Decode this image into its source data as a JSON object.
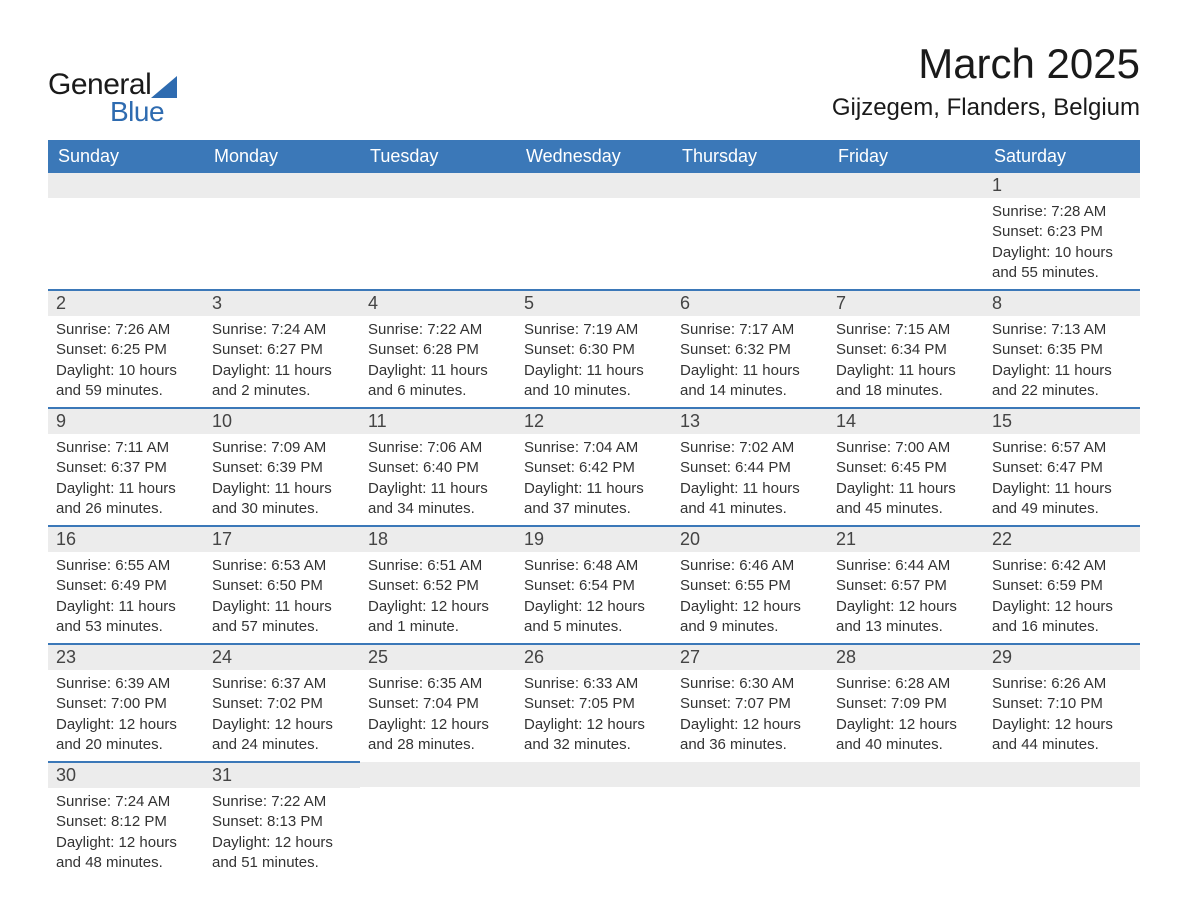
{
  "colors": {
    "brand_blue": "#3b78b8",
    "logo_blue": "#2e6bb0",
    "header_text": "#ffffff",
    "daynum_bg": "#ececec",
    "text": "#333333",
    "page_bg": "#ffffff"
  },
  "typography": {
    "month_title_size_pt": 32,
    "location_size_pt": 18,
    "dayheader_size_pt": 14,
    "daynum_size_pt": 14,
    "body_size_pt": 11
  },
  "logo": {
    "text_general": "General",
    "text_blue": "Blue"
  },
  "title": "March 2025",
  "location": "Gijzegem, Flanders, Belgium",
  "day_headers": [
    "Sunday",
    "Monday",
    "Tuesday",
    "Wednesday",
    "Thursday",
    "Friday",
    "Saturday"
  ],
  "labels": {
    "sunrise": "Sunrise:",
    "sunset": "Sunset:",
    "daylight": "Daylight:"
  },
  "weeks": [
    [
      null,
      null,
      null,
      null,
      null,
      null,
      {
        "n": "1",
        "sunrise": "7:28 AM",
        "sunset": "6:23 PM",
        "daylight": "10 hours and 55 minutes."
      }
    ],
    [
      {
        "n": "2",
        "sunrise": "7:26 AM",
        "sunset": "6:25 PM",
        "daylight": "10 hours and 59 minutes."
      },
      {
        "n": "3",
        "sunrise": "7:24 AM",
        "sunset": "6:27 PM",
        "daylight": "11 hours and 2 minutes."
      },
      {
        "n": "4",
        "sunrise": "7:22 AM",
        "sunset": "6:28 PM",
        "daylight": "11 hours and 6 minutes."
      },
      {
        "n": "5",
        "sunrise": "7:19 AM",
        "sunset": "6:30 PM",
        "daylight": "11 hours and 10 minutes."
      },
      {
        "n": "6",
        "sunrise": "7:17 AM",
        "sunset": "6:32 PM",
        "daylight": "11 hours and 14 minutes."
      },
      {
        "n": "7",
        "sunrise": "7:15 AM",
        "sunset": "6:34 PM",
        "daylight": "11 hours and 18 minutes."
      },
      {
        "n": "8",
        "sunrise": "7:13 AM",
        "sunset": "6:35 PM",
        "daylight": "11 hours and 22 minutes."
      }
    ],
    [
      {
        "n": "9",
        "sunrise": "7:11 AM",
        "sunset": "6:37 PM",
        "daylight": "11 hours and 26 minutes."
      },
      {
        "n": "10",
        "sunrise": "7:09 AM",
        "sunset": "6:39 PM",
        "daylight": "11 hours and 30 minutes."
      },
      {
        "n": "11",
        "sunrise": "7:06 AM",
        "sunset": "6:40 PM",
        "daylight": "11 hours and 34 minutes."
      },
      {
        "n": "12",
        "sunrise": "7:04 AM",
        "sunset": "6:42 PM",
        "daylight": "11 hours and 37 minutes."
      },
      {
        "n": "13",
        "sunrise": "7:02 AM",
        "sunset": "6:44 PM",
        "daylight": "11 hours and 41 minutes."
      },
      {
        "n": "14",
        "sunrise": "7:00 AM",
        "sunset": "6:45 PM",
        "daylight": "11 hours and 45 minutes."
      },
      {
        "n": "15",
        "sunrise": "6:57 AM",
        "sunset": "6:47 PM",
        "daylight": "11 hours and 49 minutes."
      }
    ],
    [
      {
        "n": "16",
        "sunrise": "6:55 AM",
        "sunset": "6:49 PM",
        "daylight": "11 hours and 53 minutes."
      },
      {
        "n": "17",
        "sunrise": "6:53 AM",
        "sunset": "6:50 PM",
        "daylight": "11 hours and 57 minutes."
      },
      {
        "n": "18",
        "sunrise": "6:51 AM",
        "sunset": "6:52 PM",
        "daylight": "12 hours and 1 minute."
      },
      {
        "n": "19",
        "sunrise": "6:48 AM",
        "sunset": "6:54 PM",
        "daylight": "12 hours and 5 minutes."
      },
      {
        "n": "20",
        "sunrise": "6:46 AM",
        "sunset": "6:55 PM",
        "daylight": "12 hours and 9 minutes."
      },
      {
        "n": "21",
        "sunrise": "6:44 AM",
        "sunset": "6:57 PM",
        "daylight": "12 hours and 13 minutes."
      },
      {
        "n": "22",
        "sunrise": "6:42 AM",
        "sunset": "6:59 PM",
        "daylight": "12 hours and 16 minutes."
      }
    ],
    [
      {
        "n": "23",
        "sunrise": "6:39 AM",
        "sunset": "7:00 PM",
        "daylight": "12 hours and 20 minutes."
      },
      {
        "n": "24",
        "sunrise": "6:37 AM",
        "sunset": "7:02 PM",
        "daylight": "12 hours and 24 minutes."
      },
      {
        "n": "25",
        "sunrise": "6:35 AM",
        "sunset": "7:04 PM",
        "daylight": "12 hours and 28 minutes."
      },
      {
        "n": "26",
        "sunrise": "6:33 AM",
        "sunset": "7:05 PM",
        "daylight": "12 hours and 32 minutes."
      },
      {
        "n": "27",
        "sunrise": "6:30 AM",
        "sunset": "7:07 PM",
        "daylight": "12 hours and 36 minutes."
      },
      {
        "n": "28",
        "sunrise": "6:28 AM",
        "sunset": "7:09 PM",
        "daylight": "12 hours and 40 minutes."
      },
      {
        "n": "29",
        "sunrise": "6:26 AM",
        "sunset": "7:10 PM",
        "daylight": "12 hours and 44 minutes."
      }
    ],
    [
      {
        "n": "30",
        "sunrise": "7:24 AM",
        "sunset": "8:12 PM",
        "daylight": "12 hours and 48 minutes."
      },
      {
        "n": "31",
        "sunrise": "7:22 AM",
        "sunset": "8:13 PM",
        "daylight": "12 hours and 51 minutes."
      },
      null,
      null,
      null,
      null,
      null
    ]
  ]
}
